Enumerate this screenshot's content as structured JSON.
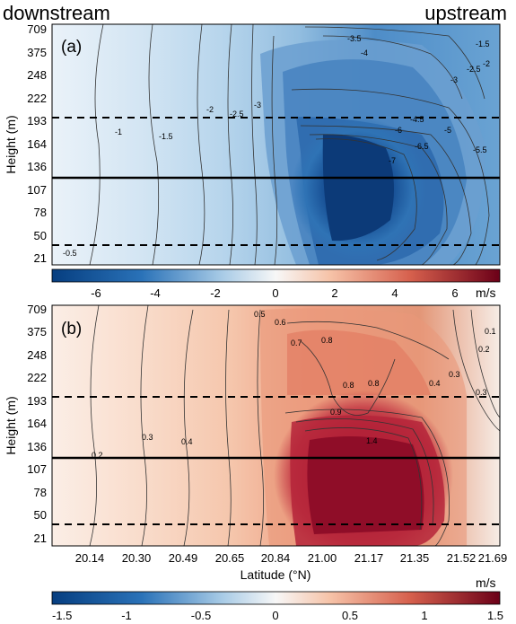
{
  "header": {
    "left": "downstream",
    "right": "upstream"
  },
  "chart_data": [
    {
      "type": "heatmap",
      "panel_label": "(a)",
      "ylabel": "Height (m)",
      "y_ticks": [
        "709",
        "375",
        "248",
        "222",
        "193",
        "164",
        "136",
        "107",
        "78",
        "50",
        "21"
      ],
      "x_ticks": [
        "20.14",
        "20.30",
        "20.49",
        "20.65",
        "20.84",
        "21.00",
        "21.17",
        "21.35",
        "21.52",
        "21.69"
      ],
      "colorbar": {
        "ticks": [
          "-6",
          "-4",
          "-2",
          "0",
          "2",
          "4",
          "6"
        ],
        "range": [
          -7.5,
          7.5
        ],
        "unit": "m/s"
      },
      "contour_labels": [
        "-0.5",
        "-1",
        "-1.5",
        "-2",
        "-2.5",
        "-3",
        "-3.5",
        "-4",
        "-4.5",
        "-5",
        "-5.5",
        "-6",
        "-6.5",
        "-7",
        "-1.5",
        "-2",
        "-2.5",
        "-3"
      ],
      "reference_lines": {
        "solid": "107",
        "dashed": [
          "193",
          "21"
        ]
      },
      "grid": false
    },
    {
      "type": "heatmap",
      "panel_label": "(b)",
      "ylabel": "Height (m)",
      "xlabel": "Latitude (°N)",
      "y_ticks": [
        "709",
        "375",
        "248",
        "222",
        "193",
        "164",
        "136",
        "107",
        "78",
        "50",
        "21"
      ],
      "x_ticks": [
        "20.14",
        "20.30",
        "20.49",
        "20.65",
        "20.84",
        "21.00",
        "21.17",
        "21.35",
        "21.52",
        "21.69"
      ],
      "colorbar": {
        "ticks": [
          "-1.5",
          "-1",
          "-0.5",
          "0",
          "0.5",
          "1",
          "1.5"
        ],
        "range": [
          -1.5,
          1.5
        ],
        "unit": "m/s"
      },
      "contour_labels": [
        "0.2",
        "0.3",
        "0.4",
        "0.5",
        "0.6",
        "0.7",
        "0.8",
        "0.8",
        "0.8",
        "0.9",
        "1.4",
        "0.4",
        "0.3",
        "0.2",
        "0.1",
        "0.3"
      ],
      "reference_lines": {
        "solid": "107",
        "dashed": [
          "193",
          "21"
        ]
      },
      "grid": false
    }
  ]
}
